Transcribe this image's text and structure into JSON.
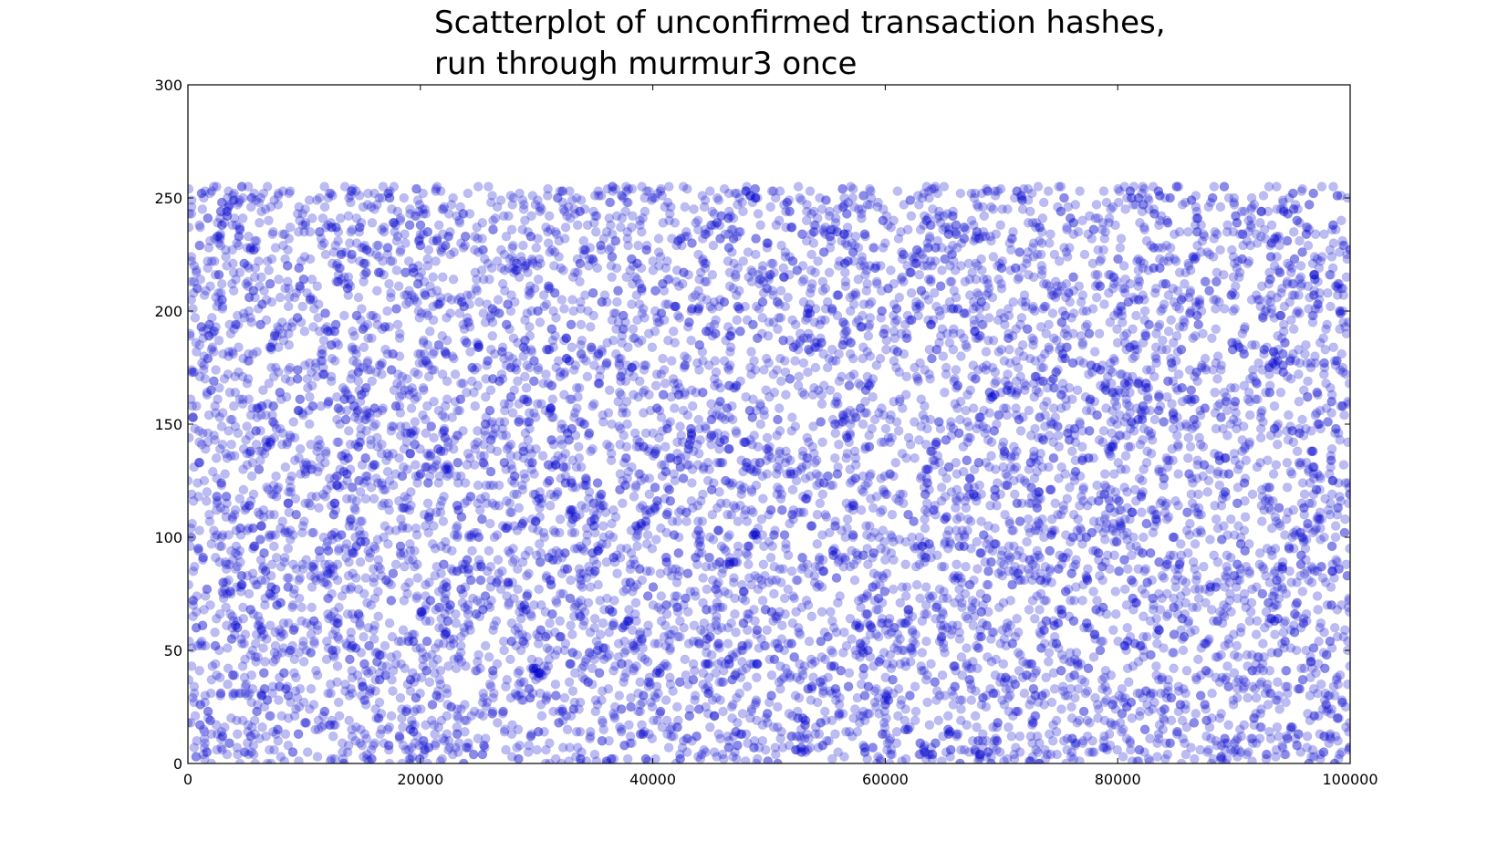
{
  "chart_data": {
    "type": "scatter",
    "title_lines": [
      "Scatterplot of unconfirmed transaction hashes,",
      "run through murmur3 once"
    ],
    "xlabel": "",
    "ylabel": "",
    "xlim": [
      0,
      100000
    ],
    "ylim": [
      0,
      300
    ],
    "x_ticks": [
      0,
      20000,
      40000,
      60000,
      80000,
      100000
    ],
    "x_tick_labels": [
      "0",
      "20000",
      "40000",
      "60000",
      "80000",
      "100000"
    ],
    "y_ticks": [
      0,
      50,
      100,
      150,
      200,
      250,
      300
    ],
    "y_tick_labels": [
      "0",
      "50",
      "100",
      "150",
      "200",
      "250",
      "300"
    ],
    "grid": false,
    "legend": "none",
    "marker": "circle",
    "marker_color": "#0000cc",
    "marker_alpha": 0.12,
    "series": [
      {
        "points_description_values": {
          "x_min": 0,
          "x_max": 100000,
          "y_min": 0,
          "y_max": 255,
          "approx_point_count": 100000
        }
      }
    ]
  }
}
